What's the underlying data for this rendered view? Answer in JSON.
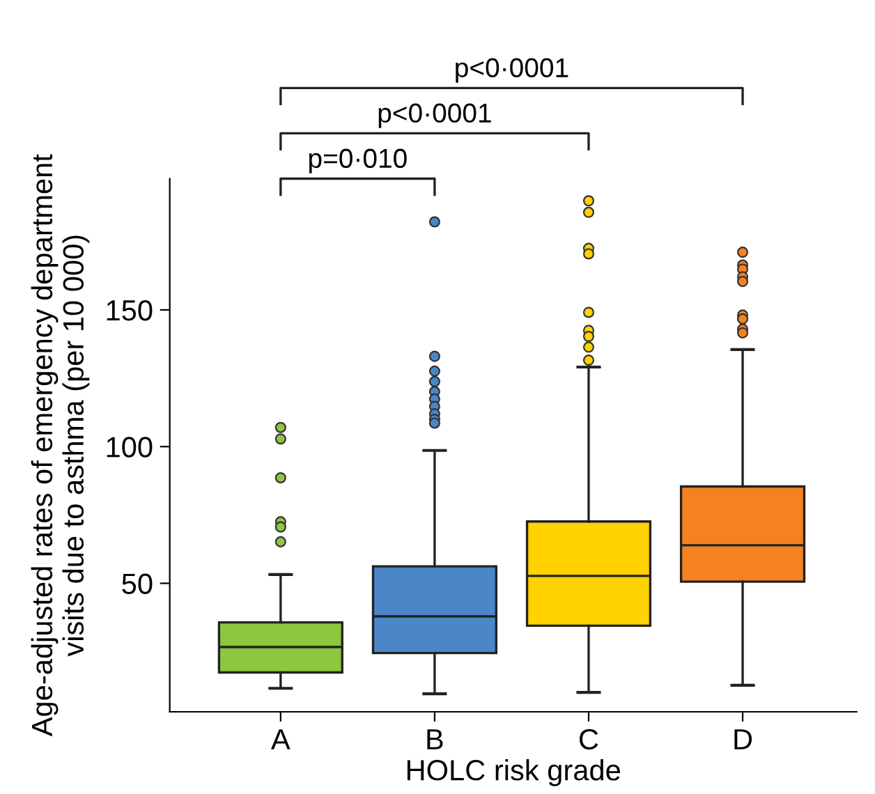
{
  "chart_data": {
    "type": "box",
    "xlabel": "HOLC risk grade",
    "ylabel": "Age-adjusted rates of emergency department\nvisits due to asthma (per 10 000)",
    "categories": [
      "A",
      "B",
      "C",
      "D"
    ],
    "colors": [
      "#8dc63f",
      "#4a86c8",
      "#ffd200",
      "#f58220"
    ],
    "boxes": [
      {
        "low": 11.6,
        "q1": 17.4,
        "median": 26.7,
        "q3": 35.7,
        "high": 53.2,
        "outliers": [
          107,
          102.8,
          88.6,
          72.5,
          70.6,
          65.2
        ]
      },
      {
        "low": 9.6,
        "q1": 24.5,
        "median": 37.9,
        "q3": 56.2,
        "high": 98.6,
        "outliers": [
          182.2,
          133,
          127.6,
          123.8,
          120.1,
          117.4,
          114.7,
          112,
          110,
          108.6
        ]
      },
      {
        "low": 10.1,
        "q1": 34.5,
        "median": 52.7,
        "q3": 72.6,
        "high": 129.1,
        "outliers": [
          189.9,
          185.7,
          172.5,
          170.5,
          149.1,
          142.5,
          140.3,
          136.4,
          131.6
        ]
      },
      {
        "low": 12.7,
        "q1": 50.6,
        "median": 63.9,
        "q3": 85.4,
        "high": 135.5,
        "outliers": [
          171.1,
          166.4,
          164.9,
          162.1,
          160.4,
          148.1,
          146.7,
          143,
          141.6
        ]
      }
    ],
    "ylim": [
      3,
      198
    ],
    "yticks": [
      50,
      100,
      150
    ],
    "grid": false,
    "annotations": [
      "p=0·010",
      "p<0·0001",
      "p<0·0001"
    ]
  }
}
